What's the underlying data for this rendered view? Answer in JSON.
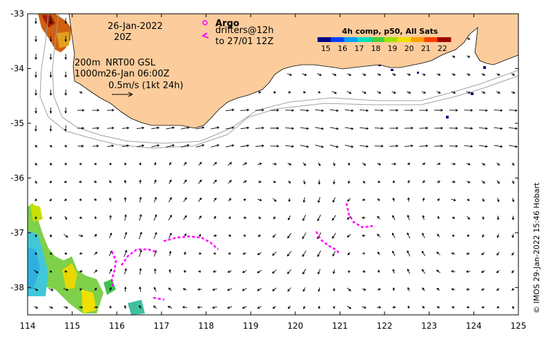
{
  "map": {
    "x_ticks": [
      "114",
      "115",
      "116",
      "117",
      "118",
      "119",
      "120",
      "121",
      "122",
      "123",
      "124",
      "125"
    ],
    "y_ticks": [
      "-33",
      "-34",
      "-35",
      "-36",
      "-37",
      "-38"
    ],
    "lon_range": [
      114,
      125
    ],
    "lat_range": [
      -38.5,
      -33
    ]
  },
  "annotations": {
    "date": "26-Jan-2022",
    "time": "20Z",
    "argo_label": "Argo",
    "drifters_label": "drifters@12h",
    "drifters_to": "to 27/01 12Z",
    "depth_200": "200m",
    "depth_1000": "1000m",
    "nrt_label": "NRT00 GSL",
    "nrt_time": "26-Jan 06:00Z",
    "scale_label": "0.5m/s (1kt 24h)"
  },
  "colorbar": {
    "title": "4h comp, p50, All Sats",
    "ticks": [
      "15",
      "16",
      "17",
      "18",
      "19",
      "20",
      "21",
      "22"
    ],
    "range": [
      14.5,
      22.5
    ],
    "colors": [
      "#000080",
      "#0040ff",
      "#00a0ff",
      "#00e0c0",
      "#40d040",
      "#a0e000",
      "#f0e000",
      "#ffa000",
      "#ff4000",
      "#a00000"
    ]
  },
  "credit": "© IMOS 29-Jan-2022 15:46 Hobart",
  "colors": {
    "land": "#fccc9c",
    "arrow": "#000000",
    "drifter": "#ff00ff",
    "isobath": "#a0a0a0"
  }
}
